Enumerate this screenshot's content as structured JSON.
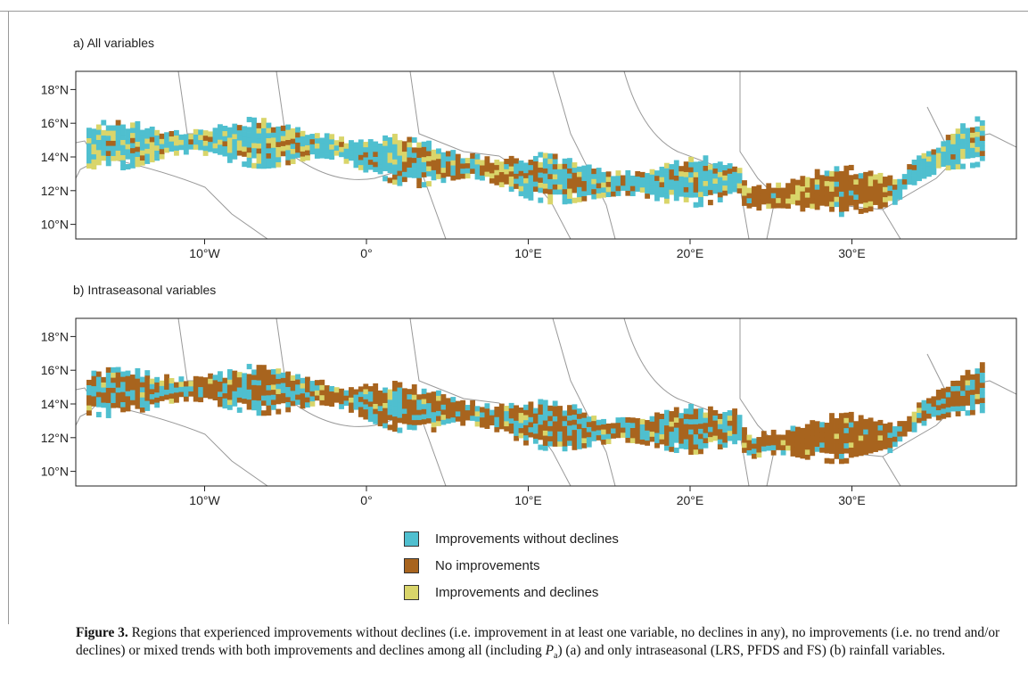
{
  "figure": {
    "panels": [
      {
        "title": "a) All variables",
        "lat_ticks": [
          "18°N",
          "16°N",
          "14°N",
          "12°N",
          "10°N"
        ],
        "lon_ticks": [
          "10°W",
          "0°",
          "10°E",
          "20°E",
          "30°E"
        ]
      },
      {
        "title": "b) Intraseasonal variables",
        "lat_ticks": [
          "18°N",
          "16°N",
          "14°N",
          "12°N",
          "10°N"
        ],
        "lon_ticks": [
          "10°W",
          "0°",
          "10°E",
          "20°E",
          "30°E"
        ]
      }
    ],
    "legend": [
      {
        "label": "Improvements without declines",
        "color": "#4fbfcf"
      },
      {
        "label": "No improvements",
        "color": "#a8641e"
      },
      {
        "label": "Improvements and declines",
        "color": "#d9d56a"
      }
    ],
    "caption": {
      "label": "Figure 3.",
      "text_1": " Regions that experienced improvements without declines (i.e. improvement in at least one variable, no declines in any), no improvements (i.e. no trend and/or declines) or mixed trends with both improvements and declines among all (including ",
      "symbol": "P",
      "subscript": "a",
      "text_2": ") (a) and only intraseasonal (LRS, PFDS and FS) (b) rainfall variables."
    }
  }
}
